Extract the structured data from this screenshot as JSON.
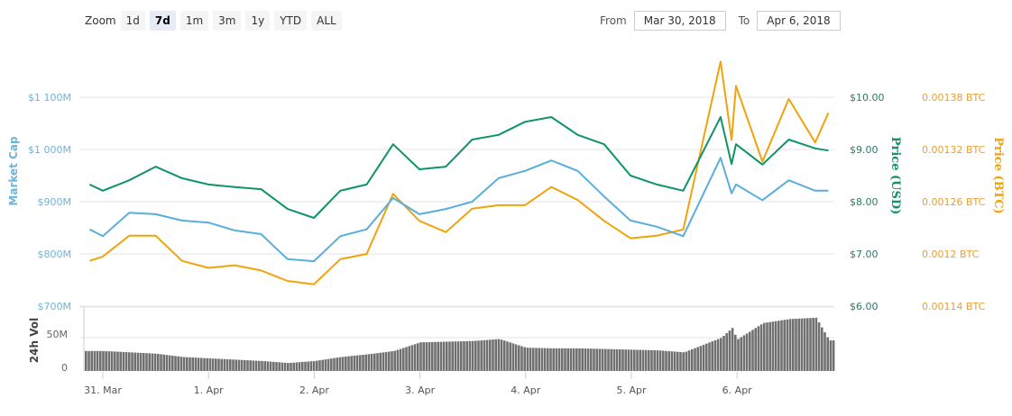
{
  "toolbar": {
    "zoom_label": "Zoom",
    "buttons": [
      "1d",
      "7d",
      "1m",
      "3m",
      "1y",
      "YTD",
      "ALL"
    ],
    "selected": "7d",
    "from_label": "From",
    "from_value": "Mar 30, 2018",
    "to_label": "To",
    "to_value": "Apr 6, 2018"
  },
  "chart_data": {
    "type": "line",
    "colors": {
      "market_cap": "#5aaedb",
      "usd": "#0e9466",
      "btc": "#f0a30a",
      "volume": "#707070"
    },
    "axes": {
      "left": {
        "title": "Market Cap",
        "ticks": [
          "$700M",
          "$800M",
          "$900M",
          "$1 000M",
          "$1 100M"
        ],
        "range": [
          700,
          1100
        ]
      },
      "usd": {
        "title": "Price (USD)",
        "ticks": [
          "$6.00",
          "$7.00",
          "$8.00",
          "$9.00",
          "$10.00"
        ],
        "range": [
          6,
          10
        ]
      },
      "btc": {
        "title": "Price (BTC)",
        "ticks": [
          "0.00114 BTC",
          "0.0012 BTC",
          "0.00126 BTC",
          "0.00132 BTC",
          "0.00138 BTC"
        ],
        "range": [
          0.00114,
          0.00138
        ]
      },
      "volume": {
        "title": "24h Vol",
        "ticks": [
          "0",
          "50M"
        ],
        "range": [
          0,
          96
        ]
      },
      "x": {
        "ticks": [
          "31. Mar",
          "1. Apr",
          "2. Apr",
          "3. Apr",
          "4. Apr",
          "5. Apr",
          "6. Apr"
        ]
      }
    },
    "grid": true,
    "x": [
      "2018-03-30T21:00",
      "2018-03-31T00:00",
      "2018-03-31T06:00",
      "2018-03-31T12:00",
      "2018-03-31T18:00",
      "2018-04-01T00:00",
      "2018-04-01T06:00",
      "2018-04-01T12:00",
      "2018-04-01T18:00",
      "2018-04-02T00:00",
      "2018-04-02T06:00",
      "2018-04-02T12:00",
      "2018-04-02T18:00",
      "2018-04-03T00:00",
      "2018-04-03T06:00",
      "2018-04-03T12:00",
      "2018-04-03T18:00",
      "2018-04-04T00:00",
      "2018-04-04T06:00",
      "2018-04-04T12:00",
      "2018-04-04T18:00",
      "2018-04-05T00:00",
      "2018-04-05T06:00",
      "2018-04-05T12:00",
      "2018-04-05T20:30",
      "2018-04-05T23:00",
      "2018-04-06T06:00",
      "2018-04-06T12:00",
      "2018-04-06T18:00",
      "2018-04-06T00:00",
      "2018-04-06T21:00"
    ],
    "series": [
      {
        "key": "market_cap",
        "axis": "left",
        "values": [
          847,
          834,
          879,
          876,
          864,
          860,
          845,
          838,
          790,
          786,
          834,
          847,
          907,
          876,
          886,
          900,
          945,
          959,
          979,
          959,
          910,
          864,
          852,
          834,
          984,
          916,
          903,
          941,
          921,
          933,
          921
        ]
      },
      {
        "key": "usd",
        "axis": "usd",
        "values": [
          8.33,
          8.21,
          8.41,
          8.67,
          8.45,
          8.33,
          8.28,
          8.24,
          7.86,
          7.69,
          8.21,
          8.33,
          9.1,
          8.62,
          8.67,
          9.19,
          9.28,
          9.53,
          9.62,
          9.28,
          9.1,
          8.5,
          8.33,
          8.21,
          9.62,
          8.72,
          8.71,
          9.19,
          9.02,
          9.1,
          8.98
        ]
      },
      {
        "key": "btc",
        "axis": "btc",
        "values": [
          0.001192,
          0.001197,
          0.001221,
          0.001221,
          0.001192,
          0.001184,
          0.001187,
          0.001181,
          0.001169,
          0.001165,
          0.001194,
          0.0012,
          0.001269,
          0.001238,
          0.001225,
          0.001252,
          0.001256,
          0.001256,
          0.001277,
          0.001262,
          0.001238,
          0.001218,
          0.001221,
          0.001228,
          0.001421,
          0.001331,
          0.001306,
          0.001378,
          0.001328,
          0.001393,
          0.001362
        ]
      },
      {
        "key": "volume",
        "axis": "volume",
        "values": [
          30,
          30,
          28,
          26,
          21,
          19,
          17,
          15,
          12,
          15,
          21,
          25,
          30,
          43,
          44,
          45,
          48,
          35,
          34,
          34,
          33,
          32,
          31,
          28,
          50,
          65,
          72,
          78,
          80,
          47,
          46
        ]
      }
    ]
  }
}
